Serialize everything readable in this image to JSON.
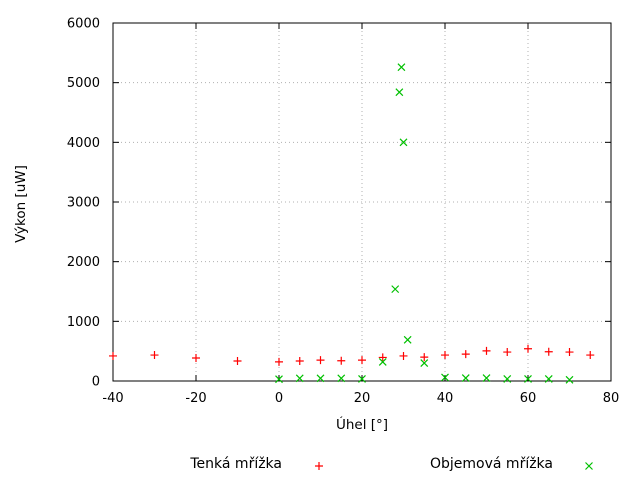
{
  "chart_data": {
    "type": "scatter",
    "title": "",
    "xlabel": "Úhel [°]",
    "ylabel": "Výkon [uW]",
    "xlim": [
      -40,
      80
    ],
    "ylim": [
      0,
      6000
    ],
    "x_ticks": [
      -40,
      -20,
      0,
      20,
      40,
      60,
      80
    ],
    "y_ticks": [
      0,
      1000,
      2000,
      3000,
      4000,
      5000,
      6000
    ],
    "grid": true,
    "grid_color": "#b0b0b0",
    "frame_color": "#000000",
    "legend_position": "below-plot",
    "series": [
      {
        "name": "Tenká mřížka",
        "marker": "plus",
        "color": "#ff0000",
        "points": [
          [
            -40,
            420
          ],
          [
            -30,
            435
          ],
          [
            -20,
            385
          ],
          [
            -10,
            335
          ],
          [
            0,
            320
          ],
          [
            5,
            335
          ],
          [
            10,
            350
          ],
          [
            15,
            340
          ],
          [
            20,
            350
          ],
          [
            25,
            395
          ],
          [
            30,
            420
          ],
          [
            35,
            400
          ],
          [
            40,
            435
          ],
          [
            45,
            450
          ],
          [
            50,
            505
          ],
          [
            55,
            485
          ],
          [
            60,
            540
          ],
          [
            65,
            490
          ],
          [
            70,
            485
          ],
          [
            75,
            435
          ]
        ]
      },
      {
        "name": "Objemová mřížka",
        "marker": "cross",
        "color": "#00c000",
        "points": [
          [
            0,
            30
          ],
          [
            5,
            45
          ],
          [
            10,
            45
          ],
          [
            15,
            45
          ],
          [
            20,
            35
          ],
          [
            25,
            320
          ],
          [
            28,
            1540
          ],
          [
            29,
            4840
          ],
          [
            29.5,
            5260
          ],
          [
            30,
            4000
          ],
          [
            31,
            690
          ],
          [
            35,
            300
          ],
          [
            40,
            60
          ],
          [
            45,
            50
          ],
          [
            50,
            50
          ],
          [
            55,
            35
          ],
          [
            60,
            35
          ],
          [
            65,
            35
          ],
          [
            70,
            20
          ]
        ]
      }
    ]
  }
}
